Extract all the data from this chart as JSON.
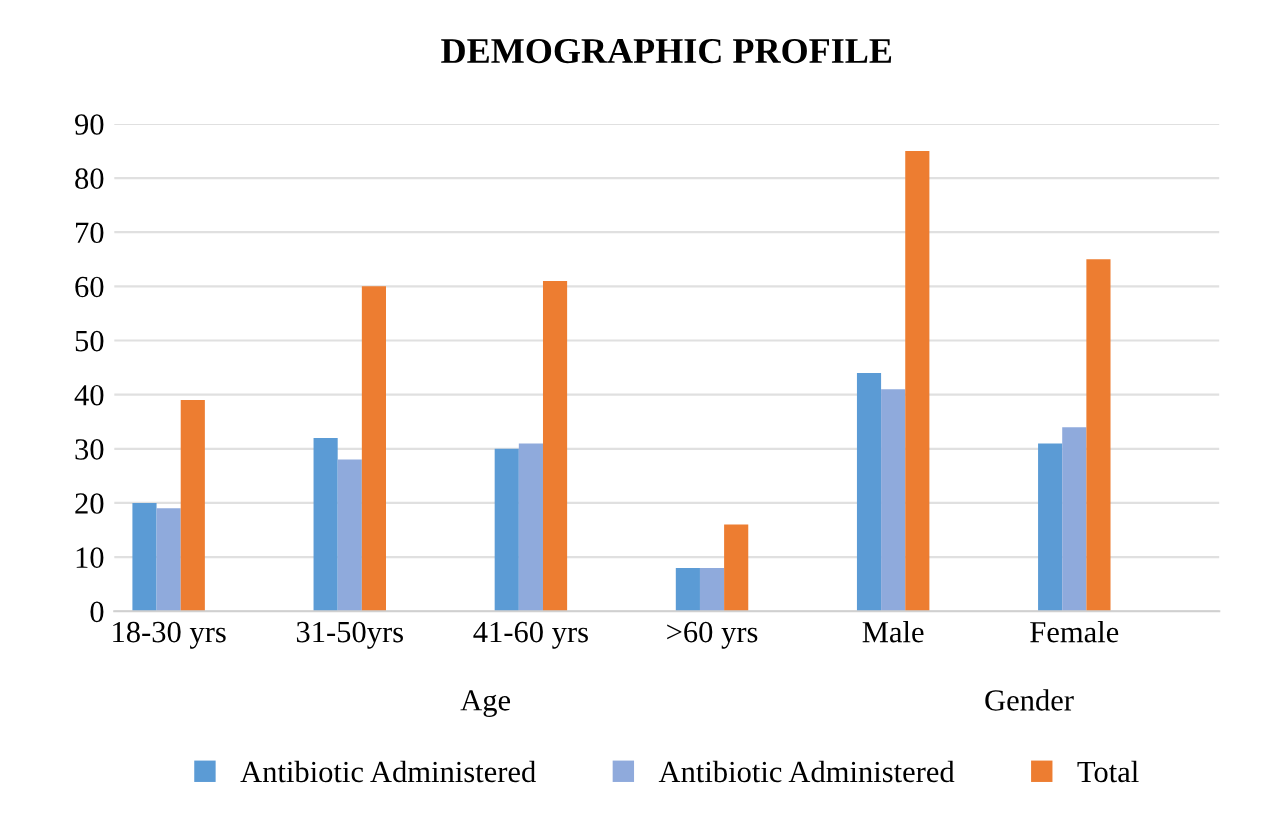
{
  "chart_data": {
    "type": "bar",
    "title": "DEMOGRAPHIC PROFILE",
    "categories": [
      "18-30 yrs",
      null,
      "31-50yrs",
      null,
      "41-60 yrs",
      null,
      ">60 yrs",
      null,
      "Male",
      null,
      "Female",
      null
    ],
    "series": [
      {
        "name": "Antibiotic Administered",
        "color": "#5b9bd5",
        "values": [
          20,
          0,
          32,
          0,
          30,
          0,
          8,
          0,
          44,
          0,
          31,
          0
        ]
      },
      {
        "name": "Antibiotic Administered",
        "color": "#8faadc",
        "values": [
          19,
          0,
          28,
          0,
          31,
          0,
          8,
          0,
          41,
          0,
          34,
          0
        ]
      },
      {
        "name": "Total",
        "color": "#ed7d31",
        "values": [
          39,
          0,
          60,
          0,
          61,
          0,
          16,
          0,
          85,
          0,
          65,
          0
        ]
      }
    ],
    "annotations": [
      "Age",
      "Gender"
    ],
    "ylim": [
      0,
      90
    ],
    "yticks": [
      0,
      10,
      20,
      30,
      40,
      50,
      60,
      70,
      80,
      90
    ],
    "grid": "y",
    "legend": "bottom"
  }
}
